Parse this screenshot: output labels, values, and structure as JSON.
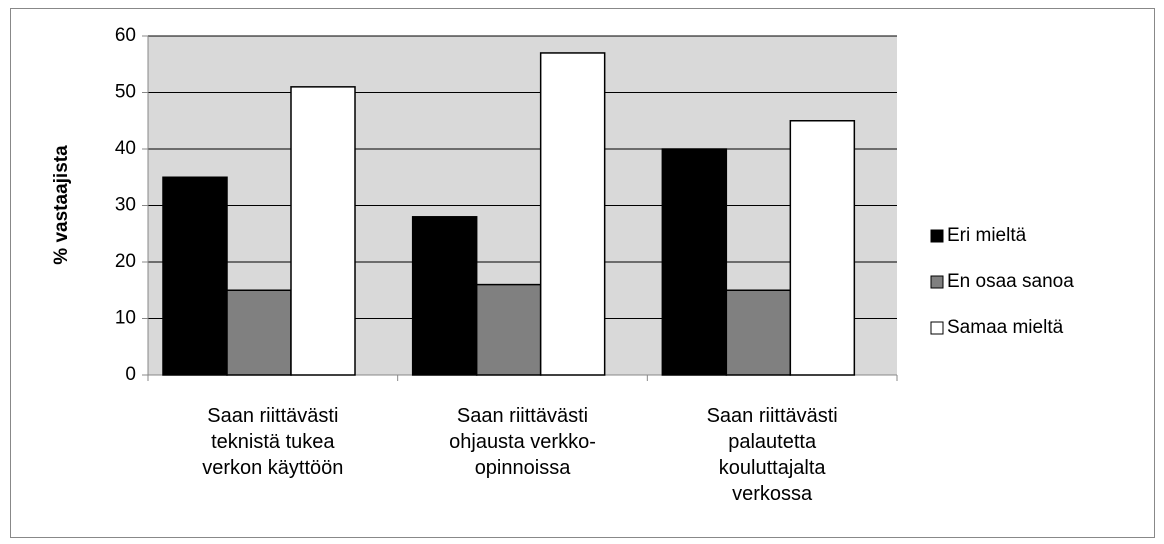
{
  "chart_data": {
    "type": "bar",
    "categories": [
      "Saan riittävästi teknistä tukea verkon käyttöön",
      "Saan riittävästi ohjausta verkko-opinnoissa",
      "Saan riittävästi palautetta kouluttajalta verkossa"
    ],
    "series": [
      {
        "name": "Eri mieltä",
        "color": "#000000",
        "values": [
          35,
          28,
          40
        ]
      },
      {
        "name": "En osaa sanoa",
        "color": "#808080",
        "values": [
          15,
          16,
          15
        ]
      },
      {
        "name": "Samaa mieltä",
        "color": "#ffffff",
        "values": [
          51,
          57,
          45
        ]
      }
    ],
    "ylabel": "% vastaajista",
    "ylim": [
      0,
      60
    ],
    "yticks": [
      0,
      10,
      20,
      30,
      40,
      50,
      60
    ],
    "grid": true,
    "legend": "right"
  }
}
